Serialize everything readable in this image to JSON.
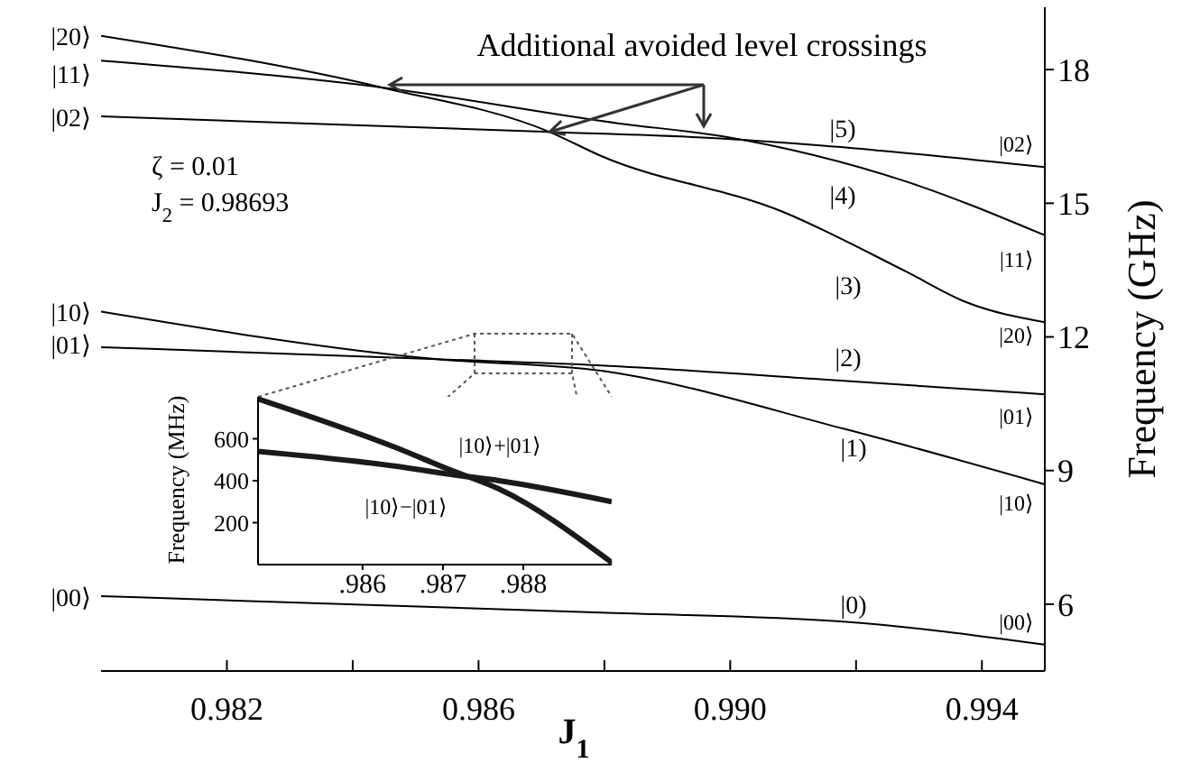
{
  "chart_data": [
    {
      "type": "line",
      "xlabel": "J$_{1}$",
      "ylabel": "Frequency (GHz)",
      "xlim": [
        0.98,
        0.995
      ],
      "xticks": [
        {
          "value": 0.982,
          "label": "0.982"
        },
        {
          "value": 0.984,
          "label": null
        },
        {
          "value": 0.986,
          "label": "0.986"
        },
        {
          "value": 0.988,
          "label": null
        },
        {
          "value": 0.99,
          "label": "0.990"
        },
        {
          "value": 0.992,
          "label": null
        },
        {
          "value": 0.994,
          "label": "0.994"
        }
      ],
      "ylim": [
        4.5,
        19.4
      ],
      "yticks": [
        6,
        9,
        12,
        15,
        18
      ],
      "series": [
        {
          "color": "#000000",
          "x": [
            0.98,
            0.98446,
            0.98713,
            0.98795,
            0.99085,
            0.99279,
            0.99375,
            0.995
          ],
          "values": [
            18.76,
            17.6,
            16.6,
            16.06,
            14.8,
            13.47,
            12.78,
            12.33
          ]
        },
        {
          "color": "#000000",
          "x": [
            0.98,
            0.98446,
            0.98824,
            0.98989,
            0.99279,
            0.995
          ],
          "values": [
            18.2,
            17.6,
            16.79,
            16.5,
            15.49,
            14.28
          ]
        },
        {
          "color": "#000000",
          "x": [
            0.98,
            0.98713,
            0.98989,
            0.99143,
            0.995
          ],
          "values": [
            16.95,
            16.6,
            16.45,
            16.3,
            15.81
          ]
        },
        {
          "color": "#000000",
          "x": [
            0.98,
            0.98534,
            0.98795,
            0.9918,
            0.995
          ],
          "values": [
            12.57,
            11.5,
            11.24,
            9.94,
            8.69
          ]
        },
        {
          "color": "#000000",
          "x": [
            0.98,
            0.98534,
            0.98795,
            0.99143,
            0.995
          ],
          "values": [
            11.77,
            11.5,
            11.36,
            11.05,
            10.71
          ]
        },
        {
          "color": "#000000",
          "x": [
            0.98,
            0.98795,
            0.9918,
            0.995
          ],
          "values": [
            6.18,
            5.81,
            5.61,
            5.09
          ]
        }
      ],
      "annotations": [
        {
          "text": "Additional avoided level crossings",
          "x": 0.98713,
          "y": 16.6
        },
        "ζ = 0.01",
        "J$_{2}$ = 0.98693",
        "|20⟩",
        "|11⟩",
        "|02⟩",
        "|10⟩",
        "|01⟩",
        "|00⟩",
        "|02⟩",
        "|11⟩",
        "|20⟩",
        "|01⟩",
        "|10⟩",
        "|00⟩",
        "|5)",
        "|4)",
        "|3)",
        "|2)",
        "|1)",
        "|0)"
      ]
    },
    {
      "type": "line",
      "ylabel": "Frequency (MHz)",
      "xlim": [
        0.9847,
        0.9891
      ],
      "xticks": [
        {
          "value": 0.986,
          "label": ".986"
        },
        {
          "value": 0.987,
          "label": ".987"
        },
        {
          "value": 0.988,
          "label": ".988"
        }
      ],
      "ylim": [
        0,
        800
      ],
      "yticks": [
        200,
        400,
        600
      ],
      "series": [
        {
          "color": "#1a1a1a",
          "x": [
            0.9847,
            0.9864,
            0.9871,
            0.9877,
            0.9891
          ],
          "values": [
            790,
            560,
            450,
            360,
            10
          ]
        },
        {
          "color": "#1a1a1a",
          "x": [
            0.9847,
            0.9864,
            0.9871,
            0.9877,
            0.9891
          ],
          "values": [
            540,
            470,
            430,
            400,
            300
          ]
        }
      ],
      "annotations": [
        "|10⟩+|01⟩",
        "|10⟩−|01⟩"
      ]
    }
  ]
}
